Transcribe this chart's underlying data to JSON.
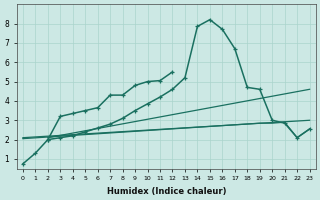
{
  "xlabel": "Humidex (Indice chaleur)",
  "background_color": "#cce8e4",
  "grid_color": "#aad4cc",
  "line_color": "#1a7060",
  "xlim": [
    -0.5,
    23.5
  ],
  "ylim": [
    0.5,
    9.0
  ],
  "yticks": [
    1,
    2,
    3,
    4,
    5,
    6,
    7,
    8
  ],
  "xticks": [
    0,
    1,
    2,
    3,
    4,
    5,
    6,
    7,
    8,
    9,
    10,
    11,
    12,
    13,
    14,
    15,
    16,
    17,
    18,
    19,
    20,
    21,
    22,
    23
  ],
  "main_x": [
    0,
    1,
    2,
    3,
    4,
    5,
    6,
    7,
    8,
    9,
    10,
    11,
    12,
    13,
    14,
    15,
    16,
    17,
    18,
    19,
    20,
    21,
    22,
    23
  ],
  "main_y": [
    0.75,
    1.3,
    2.0,
    2.1,
    2.2,
    2.4,
    2.6,
    2.8,
    3.1,
    3.5,
    3.85,
    4.2,
    4.6,
    5.2,
    7.85,
    8.2,
    7.7,
    6.7,
    4.7,
    4.6,
    3.0,
    2.85,
    2.1,
    2.55
  ],
  "upper_x": [
    2,
    3,
    4,
    5,
    6,
    7,
    8,
    9,
    10,
    11,
    12
  ],
  "upper_y": [
    2.0,
    3.2,
    3.35,
    3.5,
    3.65,
    4.3,
    4.3,
    4.8,
    5.0,
    5.05,
    5.5
  ],
  "line1_x": [
    2,
    23
  ],
  "line1_y": [
    2.1,
    4.6
  ],
  "line2_x": [
    0,
    23
  ],
  "line2_y": [
    2.1,
    3.0
  ],
  "line3_x": [
    0,
    19,
    20,
    21,
    22,
    23
  ],
  "line3_y": [
    2.05,
    2.85,
    2.85,
    2.9,
    2.1,
    2.55
  ]
}
